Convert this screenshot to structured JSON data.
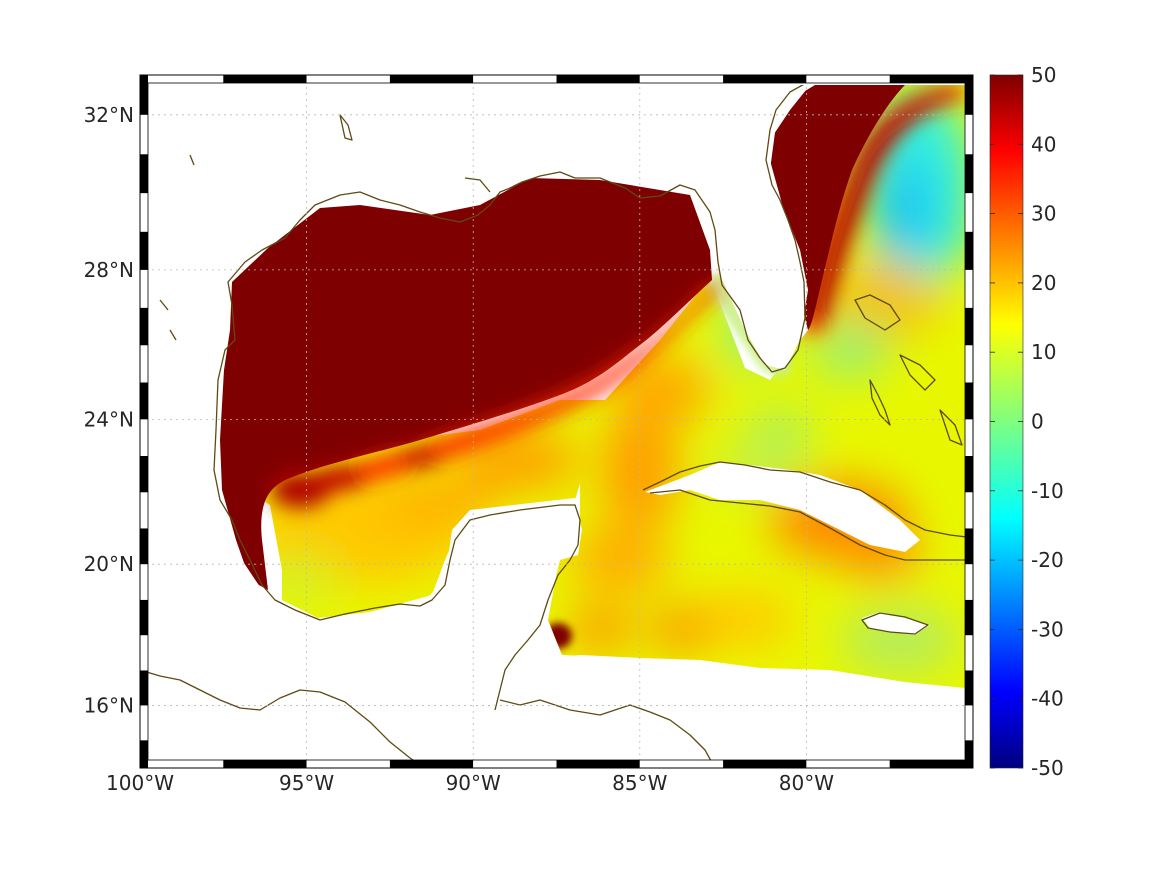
{
  "map": {
    "region": "Gulf of Mexico and Caribbean",
    "longitude_labels": [
      "100°W",
      "95°W",
      "90°W",
      "85°W",
      "80°W"
    ],
    "longitude_values": [
      -100,
      -95,
      -90,
      -85,
      -80
    ],
    "latitude_labels": [
      "32°N",
      "28°N",
      "24°N",
      "20°N",
      "16°N"
    ],
    "latitude_values": [
      32,
      28,
      24,
      20,
      16
    ],
    "lon_range": [
      -100,
      -75
    ],
    "lat_range": [
      14.2,
      33
    ],
    "grid": true,
    "coastline_color": "#5e4a12"
  },
  "colorbar": {
    "min": -50,
    "max": 50,
    "tick_labels": [
      "50",
      "40",
      "30",
      "20",
      "10",
      "0",
      "-10",
      "-20",
      "-30",
      "-40",
      "-50"
    ],
    "tick_values": [
      50,
      40,
      30,
      20,
      10,
      0,
      -10,
      -20,
      -30,
      -40,
      -50
    ],
    "colormap": "jet",
    "colors": [
      "#00007f",
      "#0000ff",
      "#007fff",
      "#00ffff",
      "#7fff7f",
      "#ffff00",
      "#ff7f00",
      "#ff0000",
      "#7f0000"
    ]
  }
}
